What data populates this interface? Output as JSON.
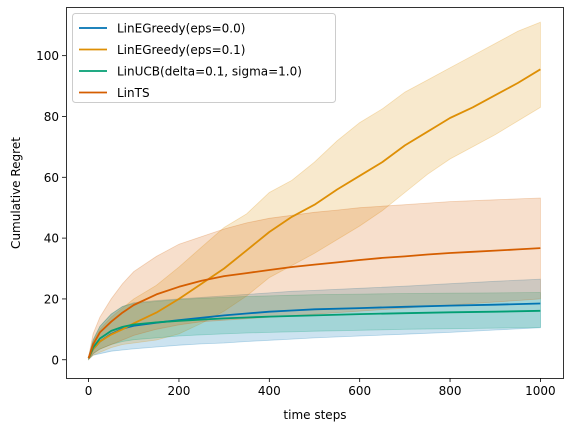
{
  "chart_data": {
    "type": "line",
    "title": "",
    "xlabel": "time steps",
    "ylabel": "Cumulative Regret",
    "xlim": [
      -50,
      1050
    ],
    "ylim": [
      -6,
      116
    ],
    "xticks": [
      0,
      200,
      400,
      600,
      800,
      1000
    ],
    "yticks": [
      0,
      20,
      40,
      60,
      80,
      100
    ],
    "grid": false,
    "legend_placement": "upper-left",
    "band_opacity": 0.2,
    "series": [
      {
        "name": "LinEGreedy(eps=0.0)",
        "color": "#0173b2",
        "x": [
          0,
          10,
          25,
          50,
          75,
          100,
          150,
          200,
          250,
          300,
          350,
          400,
          450,
          500,
          600,
          700,
          800,
          900,
          1000
        ],
        "mean": [
          0.5,
          3.5,
          6,
          8.5,
          10.2,
          11.2,
          12.2,
          13,
          13.8,
          14.6,
          15.2,
          15.8,
          16.2,
          16.6,
          17,
          17.4,
          17.8,
          18.1,
          18.5
        ],
        "lower": [
          0.1,
          1.5,
          2,
          2.8,
          3.2,
          3.6,
          4.2,
          4.8,
          5.2,
          5.5,
          6,
          6.4,
          6.8,
          7.2,
          7.8,
          8.4,
          9,
          9.8,
          10.5
        ],
        "upper": [
          1,
          6.5,
          11,
          15,
          17.5,
          18.8,
          19.5,
          20,
          20.5,
          21,
          21.5,
          22,
          22.5,
          22.8,
          23.5,
          24.2,
          25,
          25.8,
          26.5
        ]
      },
      {
        "name": "LinEGreedy(eps=0.1)",
        "color": "#de8f05",
        "x": [
          0,
          10,
          25,
          50,
          75,
          100,
          150,
          200,
          250,
          300,
          350,
          400,
          450,
          500,
          550,
          600,
          650,
          700,
          750,
          800,
          850,
          900,
          950,
          1000
        ],
        "mean": [
          0.5,
          3.5,
          6,
          8.3,
          10,
          12,
          15.5,
          20,
          25,
          30,
          36,
          42,
          47,
          51,
          56,
          60.5,
          65,
          70.5,
          75,
          79.5,
          83,
          87,
          91,
          95.5
        ],
        "lower": [
          0.1,
          1.5,
          2.5,
          4,
          5,
          5.5,
          6.5,
          8.5,
          12,
          16,
          21,
          27,
          31,
          35,
          39.5,
          44,
          49,
          55,
          61,
          66,
          70,
          74,
          78.5,
          83
        ],
        "upper": [
          1,
          6,
          10,
          14,
          17,
          20,
          24.5,
          30.5,
          37,
          43.5,
          48,
          55,
          59,
          65,
          72,
          78,
          82.5,
          88,
          92,
          96,
          100,
          104,
          108,
          111
        ]
      },
      {
        "name": "LinUCB(delta=0.1, sigma=1.0)",
        "color": "#029e73",
        "x": [
          0,
          10,
          25,
          50,
          75,
          100,
          150,
          200,
          250,
          300,
          350,
          400,
          450,
          500,
          600,
          700,
          800,
          900,
          1000
        ],
        "mean": [
          0.5,
          4,
          7,
          9.5,
          10.8,
          11.6,
          12.3,
          12.8,
          13.2,
          13.6,
          13.9,
          14.2,
          14.4,
          14.6,
          15,
          15.3,
          15.6,
          15.8,
          16.1
        ],
        "lower": [
          0.1,
          2,
          3.5,
          5,
          6,
          6.6,
          7.2,
          7.8,
          8.2,
          8.5,
          8.8,
          9,
          9.2,
          9.4,
          9.7,
          10,
          10.2,
          10.4,
          10.6
        ],
        "upper": [
          1,
          6.5,
          11,
          15,
          17.5,
          18.5,
          19.2,
          19.8,
          20.2,
          20.5,
          20.8,
          21,
          21.2,
          21.4,
          21.6,
          21.8,
          21.9,
          22,
          22.1
        ]
      },
      {
        "name": "LinTS",
        "color": "#d55e00",
        "x": [
          0,
          10,
          25,
          50,
          75,
          100,
          150,
          200,
          250,
          300,
          350,
          400,
          450,
          500,
          550,
          600,
          650,
          700,
          750,
          800,
          850,
          900,
          950,
          1000
        ],
        "mean": [
          0.5,
          5,
          9,
          12.5,
          15.5,
          18,
          21.5,
          24,
          26,
          27.5,
          28.5,
          29.5,
          30.5,
          31.3,
          32,
          32.8,
          33.5,
          34,
          34.6,
          35.1,
          35.5,
          35.9,
          36.3,
          36.7
        ],
        "lower": [
          0.1,
          2,
          3.5,
          5,
          6.5,
          8,
          10,
          11.5,
          12.5,
          13,
          13.5,
          14,
          14.5,
          15,
          15.5,
          16,
          16.5,
          17,
          17.5,
          18,
          18.5,
          19,
          19.5,
          20
        ],
        "upper": [
          1,
          8.5,
          14,
          20,
          25,
          29,
          34,
          38,
          40.5,
          43,
          45,
          46.5,
          47.5,
          48.5,
          49.2,
          50,
          50.5,
          51,
          51.5,
          52,
          52.3,
          52.6,
          52.9,
          53.2
        ]
      }
    ]
  }
}
